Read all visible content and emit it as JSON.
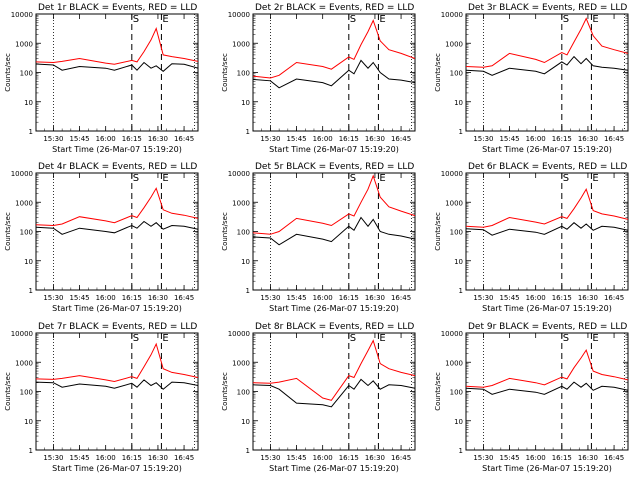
{
  "figure": {
    "x_axis_title": "Start Time (26-Mar-07 15:19:20)",
    "y_axis_title": "Counts/sec",
    "x_tick_labels": [
      "15:30",
      "15:45",
      "16:00",
      "16:15",
      "16:30",
      "16:45"
    ],
    "y_tick_labels": [
      "1",
      "10",
      "100",
      "1000",
      "10000"
    ],
    "marker_S": "S",
    "marker_E": "E",
    "colors": {
      "events": "#000000",
      "lld": "#ff0000",
      "background": "#ffffff"
    }
  },
  "chart_data": [
    {
      "type": "line",
      "title": "Det 1r BLACK = Events, RED = LLD",
      "x": [
        "15:20",
        "15:30",
        "15:35",
        "15:45",
        "16:00",
        "16:05",
        "16:15",
        "16:18",
        "16:22",
        "16:26",
        "16:29",
        "16:33",
        "16:38",
        "16:45",
        "16:53"
      ],
      "ylim": [
        1,
        10000
      ],
      "yscale": "log",
      "series": [
        {
          "values": [
            230,
            220,
            240,
            300,
            210,
            190,
            260,
            230,
            520,
            1300,
            3200,
            400,
            350,
            300,
            240
          ]
        },
        {
          "values": [
            195,
            180,
            120,
            160,
            140,
            120,
            180,
            120,
            220,
            140,
            170,
            110,
            200,
            190,
            140
          ]
        }
      ]
    },
    {
      "type": "line",
      "title": "Det 2r BLACK = Events, RED = LLD",
      "x": [
        "15:20",
        "15:30",
        "15:35",
        "15:45",
        "16:00",
        "16:05",
        "16:15",
        "16:18",
        "16:22",
        "16:26",
        "16:29",
        "16:33",
        "16:38",
        "16:45",
        "16:53"
      ],
      "ylim": [
        1,
        10000
      ],
      "yscale": "log",
      "series": [
        {
          "values": [
            75,
            65,
            80,
            220,
            160,
            130,
            340,
            280,
            900,
            2500,
            6000,
            1200,
            600,
            450,
            300
          ]
        },
        {
          "values": [
            58,
            52,
            30,
            60,
            45,
            35,
            120,
            90,
            260,
            140,
            220,
            100,
            60,
            55,
            45
          ]
        }
      ]
    },
    {
      "type": "line",
      "title": "Det 3r BLACK = Events, RED = LLD",
      "x": [
        "15:20",
        "15:30",
        "15:35",
        "15:45",
        "16:00",
        "16:05",
        "16:15",
        "16:18",
        "16:22",
        "16:26",
        "16:29",
        "16:33",
        "16:38",
        "16:45",
        "16:53"
      ],
      "ylim": [
        1,
        10000
      ],
      "yscale": "log",
      "series": [
        {
          "values": [
            160,
            150,
            170,
            450,
            280,
            220,
            480,
            400,
            1100,
            3000,
            7000,
            1800,
            800,
            600,
            450
          ]
        },
        {
          "values": [
            120,
            110,
            80,
            140,
            110,
            90,
            230,
            180,
            350,
            200,
            300,
            170,
            150,
            140,
            120
          ]
        }
      ]
    },
    {
      "type": "line",
      "title": "Det 4r BLACK = Events, RED = LLD",
      "x": [
        "15:20",
        "15:30",
        "15:35",
        "15:45",
        "16:00",
        "16:05",
        "16:15",
        "16:18",
        "16:22",
        "16:26",
        "16:29",
        "16:33",
        "16:38",
        "16:45",
        "16:53"
      ],
      "ylim": [
        1,
        10000
      ],
      "yscale": "log",
      "series": [
        {
          "values": [
            170,
            160,
            180,
            320,
            230,
            200,
            350,
            300,
            650,
            1500,
            3000,
            550,
            420,
            360,
            280
          ]
        },
        {
          "values": [
            140,
            130,
            80,
            130,
            100,
            90,
            160,
            130,
            220,
            150,
            200,
            120,
            160,
            150,
            120
          ]
        }
      ]
    },
    {
      "type": "line",
      "title": "Det 5r BLACK = Events, RED = LLD",
      "x": [
        "15:20",
        "15:30",
        "15:35",
        "15:45",
        "16:00",
        "16:05",
        "16:15",
        "16:18",
        "16:22",
        "16:26",
        "16:29",
        "16:33",
        "16:38",
        "16:45",
        "16:53"
      ],
      "ylim": [
        1,
        10000
      ],
      "yscale": "log",
      "series": [
        {
          "values": [
            90,
            80,
            100,
            280,
            190,
            160,
            400,
            340,
            1000,
            2800,
            8000,
            1500,
            700,
            500,
            350
          ]
        },
        {
          "values": [
            65,
            60,
            35,
            80,
            55,
            45,
            150,
            110,
            300,
            150,
            260,
            100,
            80,
            70,
            55
          ]
        }
      ]
    },
    {
      "type": "line",
      "title": "Det 6r BLACK = Events, RED = LLD",
      "x": [
        "15:20",
        "15:30",
        "15:35",
        "15:45",
        "16:00",
        "16:05",
        "16:15",
        "16:18",
        "16:22",
        "16:26",
        "16:29",
        "16:33",
        "16:38",
        "16:45",
        "16:53"
      ],
      "ylim": [
        1,
        10000
      ],
      "yscale": "log",
      "series": [
        {
          "values": [
            150,
            140,
            160,
            300,
            210,
            180,
            320,
            280,
            600,
            1400,
            2800,
            520,
            400,
            340,
            260
          ]
        },
        {
          "values": [
            125,
            115,
            75,
            120,
            95,
            80,
            150,
            120,
            200,
            130,
            180,
            110,
            150,
            140,
            110
          ]
        }
      ]
    },
    {
      "type": "line",
      "title": "Det 7r BLACK = Events, RED = LLD",
      "x": [
        "15:20",
        "15:30",
        "15:35",
        "15:45",
        "16:00",
        "16:05",
        "16:15",
        "16:18",
        "16:22",
        "16:26",
        "16:29",
        "16:33",
        "16:38",
        "16:45",
        "16:53"
      ],
      "ylim": [
        1,
        10000
      ],
      "yscale": "log",
      "series": [
        {
          "values": [
            270,
            260,
            280,
            350,
            250,
            220,
            320,
            280,
            700,
            1800,
            4200,
            600,
            450,
            380,
            300
          ]
        },
        {
          "values": [
            210,
            200,
            140,
            180,
            150,
            130,
            190,
            140,
            250,
            160,
            200,
            120,
            210,
            200,
            160
          ]
        }
      ]
    },
    {
      "type": "line",
      "title": "Det 8r BLACK = Events, RED = LLD",
      "x": [
        "15:20",
        "15:30",
        "15:35",
        "15:45",
        "16:00",
        "16:05",
        "16:15",
        "16:18",
        "16:22",
        "16:26",
        "16:29",
        "16:33",
        "16:38",
        "16:45",
        "16:53"
      ],
      "ylim": [
        1,
        10000
      ],
      "yscale": "log",
      "series": [
        {
          "values": [
            200,
            190,
            210,
            280,
            60,
            50,
            350,
            300,
            900,
            2500,
            5500,
            900,
            600,
            450,
            350
          ]
        },
        {
          "values": [
            170,
            160,
            120,
            40,
            35,
            30,
            160,
            120,
            260,
            160,
            230,
            120,
            170,
            160,
            130
          ]
        }
      ]
    },
    {
      "type": "line",
      "title": "Det 9r BLACK = Events, RED = LLD",
      "x": [
        "15:20",
        "15:30",
        "15:35",
        "15:45",
        "16:00",
        "16:05",
        "16:15",
        "16:18",
        "16:22",
        "16:26",
        "16:29",
        "16:33",
        "16:38",
        "16:45",
        "16:53"
      ],
      "ylim": [
        1,
        10000
      ],
      "yscale": "log",
      "series": [
        {
          "values": [
            150,
            140,
            160,
            280,
            200,
            170,
            310,
            270,
            650,
            1400,
            2600,
            500,
            380,
            320,
            250
          ]
        },
        {
          "values": [
            130,
            120,
            80,
            120,
            95,
            80,
            150,
            120,
            210,
            140,
            190,
            110,
            150,
            140,
            110
          ]
        }
      ]
    }
  ]
}
